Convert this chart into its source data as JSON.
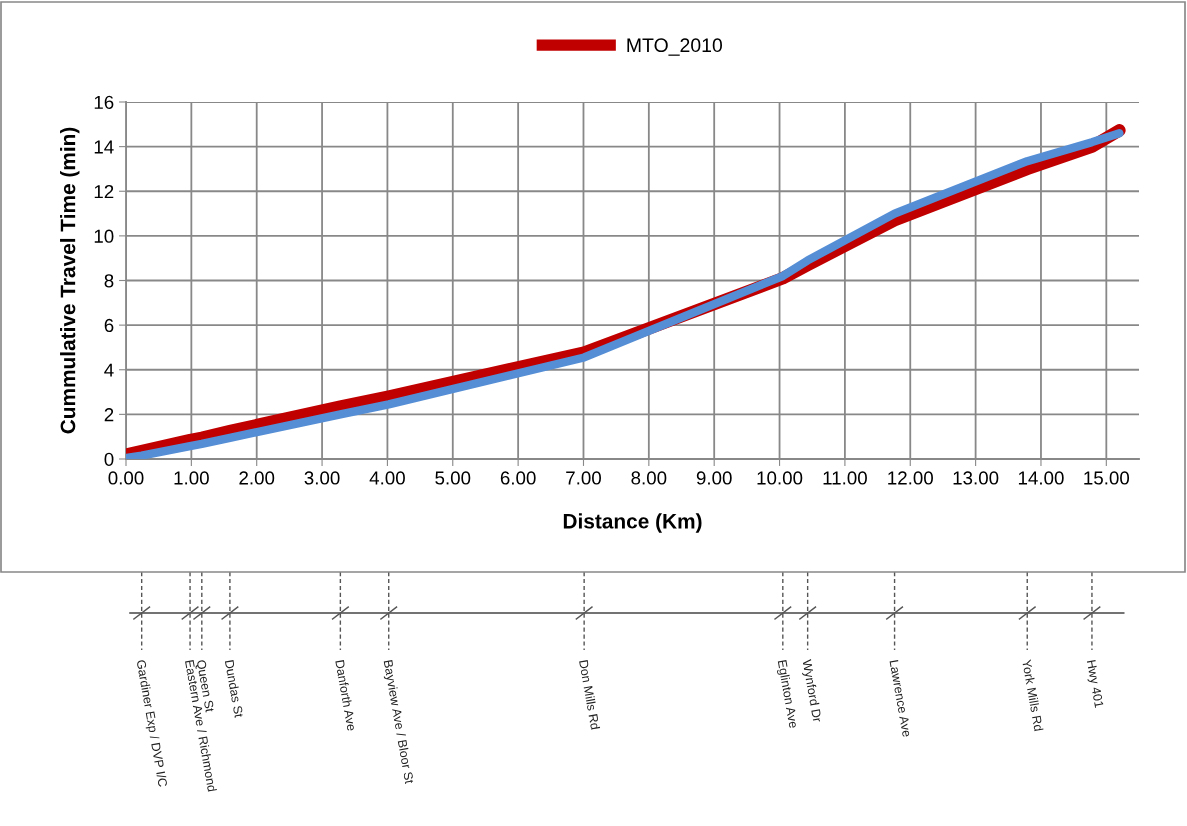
{
  "chart_data": {
    "type": "line",
    "xlabel": "Distance (Km)",
    "ylabel": "Cummulative Travel Time (min)",
    "xlim": [
      0,
      15.5
    ],
    "xticks": [
      {
        "value": 0,
        "label": "0.00"
      },
      {
        "value": 1,
        "label": "1.00"
      },
      {
        "value": 2,
        "label": "2.00"
      },
      {
        "value": 3,
        "label": "3.00"
      },
      {
        "value": 4,
        "label": "4.00"
      },
      {
        "value": 5,
        "label": "5.00"
      },
      {
        "value": 6,
        "label": "6.00"
      },
      {
        "value": 7,
        "label": "7.00"
      },
      {
        "value": 8,
        "label": "8.00"
      },
      {
        "value": 9,
        "label": "9.00"
      },
      {
        "value": 10,
        "label": "10.00"
      },
      {
        "value": 11,
        "label": "11.00"
      },
      {
        "value": 12,
        "label": "12.00"
      },
      {
        "value": 13,
        "label": "13.00"
      },
      {
        "value": 14,
        "label": "14.00"
      },
      {
        "value": 15,
        "label": "15.00"
      }
    ],
    "ylim": [
      0,
      16
    ],
    "yticks": [
      0,
      2,
      4,
      6,
      8,
      10,
      12,
      14,
      16
    ],
    "grid": true,
    "legend": "top",
    "marker": "none",
    "line_style": "solid",
    "x": [
      0,
      0.24,
      0.98,
      1.16,
      1.59,
      3.28,
      4.02,
      7.01,
      10.05,
      10.43,
      11.76,
      13.79,
      14.78,
      15.2
    ],
    "series": [
      {
        "name": "MTO_2010",
        "color": "#c00000",
        "values": [
          0.2,
          0.35,
          0.85,
          0.95,
          1.25,
          2.35,
          2.8,
          4.77,
          8.1,
          8.7,
          10.7,
          13.0,
          14.0,
          14.73
        ]
      },
      {
        "color": "#558ed5",
        "values": [
          0.05,
          0.15,
          0.58,
          0.68,
          0.95,
          2.0,
          2.45,
          4.55,
          8.2,
          8.9,
          11.0,
          13.35,
          14.2,
          14.6
        ]
      }
    ],
    "annotations": [
      "Gardiner Exp / DVP I/C",
      "Eastern Ave / Richmond",
      "Queen St",
      "Dundas St",
      "Danforth Ave",
      "Bayview Ave / Bloor St",
      "Don Mills Rd",
      "Eglinton Ave",
      "Wynford Dr",
      "Lawrence Ave",
      "York Mills Rd",
      "Hwy 401"
    ]
  }
}
